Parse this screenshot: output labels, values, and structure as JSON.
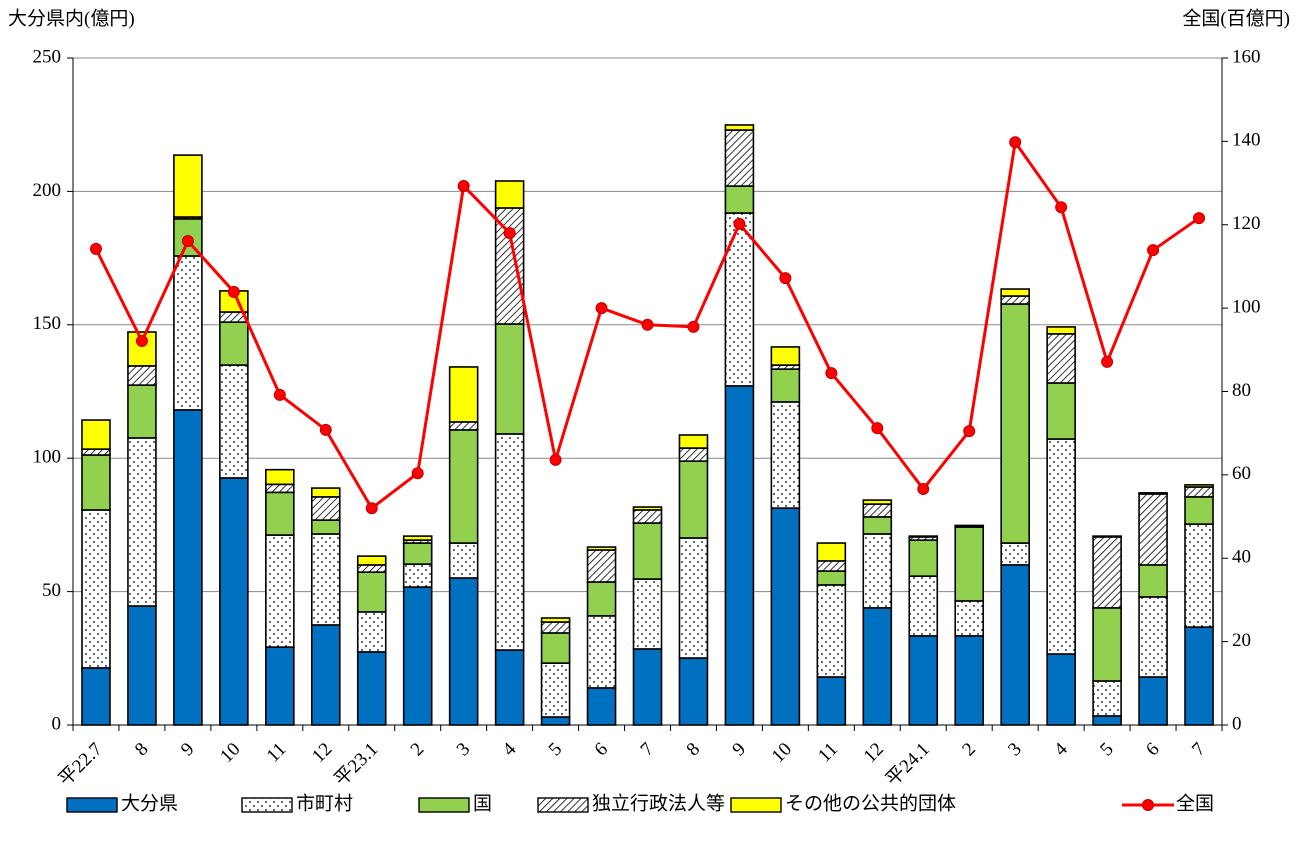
{
  "chart_data": {
    "type": "bar",
    "stacked": true,
    "y_label": "大分県内(億円)",
    "y2_label": "全国(百億円)",
    "categories": [
      "平22.7",
      "8",
      "9",
      "10",
      "11",
      "12",
      "平23.1",
      "2",
      "3",
      "4",
      "5",
      "6",
      "7",
      "8",
      "9",
      "10",
      "11",
      "12",
      "平24.1",
      "2",
      "3",
      "4",
      "5",
      "6",
      "7"
    ],
    "series": [
      {
        "name": "大分県",
        "color": "#0070c0",
        "pattern": "solid",
        "values": [
          21.4,
          44.6,
          118.1,
          92.6,
          29.2,
          37.5,
          27.4,
          51.7,
          55.1,
          28.1,
          3,
          13.9,
          28.5,
          25.1,
          127.1,
          81.3,
          18,
          43.9,
          33.4,
          33.4,
          60,
          26.6,
          3.4,
          18,
          36.7
        ]
      },
      {
        "name": "市町村",
        "color": "#ffffff",
        "pattern": "dots",
        "values": [
          59.2,
          63,
          57.7,
          42.3,
          42,
          34.1,
          15,
          8.6,
          13.1,
          81,
          20.2,
          27,
          26.2,
          45,
          64.8,
          39.8,
          34.5,
          27.7,
          22.4,
          13.1,
          8.2,
          80.6,
          13.1,
          30,
          38.6
        ]
      },
      {
        "name": "国",
        "color": "#92d050",
        "pattern": "solid",
        "values": [
          20.6,
          19.8,
          13.9,
          16.1,
          16,
          5.2,
          14.9,
          7.9,
          42.4,
          41.2,
          11.3,
          12.7,
          21,
          28.8,
          10.1,
          12.3,
          5.2,
          6.4,
          13.5,
          27.7,
          89.6,
          21,
          27.4,
          12,
          10.2
        ]
      },
      {
        "name": "独立行政法人等",
        "color": "#ffffff",
        "pattern": "hatch",
        "values": [
          2.2,
          7.2,
          0.7,
          3.8,
          3,
          8.7,
          2.7,
          1.1,
          3,
          43.5,
          4.1,
          12,
          4.9,
          4.9,
          21,
          1.5,
          3.8,
          4.8,
          1.2,
          0.4,
          3,
          18.4,
          26.6,
          26.6,
          3.7
        ]
      },
      {
        "name": "その他の公共的団体",
        "color": "#ffff00",
        "pattern": "solid",
        "values": [
          10.9,
          12.7,
          23.2,
          7.9,
          5.5,
          3.3,
          3.3,
          1.5,
          20.6,
          10.1,
          1.5,
          1.1,
          1.1,
          4.9,
          1.9,
          6.8,
          6.7,
          1.5,
          0.3,
          0.2,
          2.6,
          2.6,
          0.3,
          0.4,
          0.8
        ]
      },
      {
        "name": "全国",
        "color": "#ff0000",
        "type": "line",
        "axis": "y2",
        "values": [
          114.2,
          92.1,
          116.1,
          103.9,
          79.2,
          70.8,
          52,
          60.4,
          129.3,
          118,
          63.6,
          100,
          96,
          95.5,
          120.2,
          107.2,
          84.4,
          71.2,
          56.6,
          70.5,
          139.8,
          124.2,
          87.1,
          113.9,
          121.6
        ]
      }
    ],
    "ylim": [
      0,
      250
    ],
    "yticks": [
      0,
      50,
      100,
      150,
      200,
      250
    ],
    "y2lim": [
      0,
      160
    ],
    "y2ticks": [
      0,
      20,
      40,
      60,
      80,
      100,
      120,
      140,
      160
    ],
    "grid": true
  }
}
